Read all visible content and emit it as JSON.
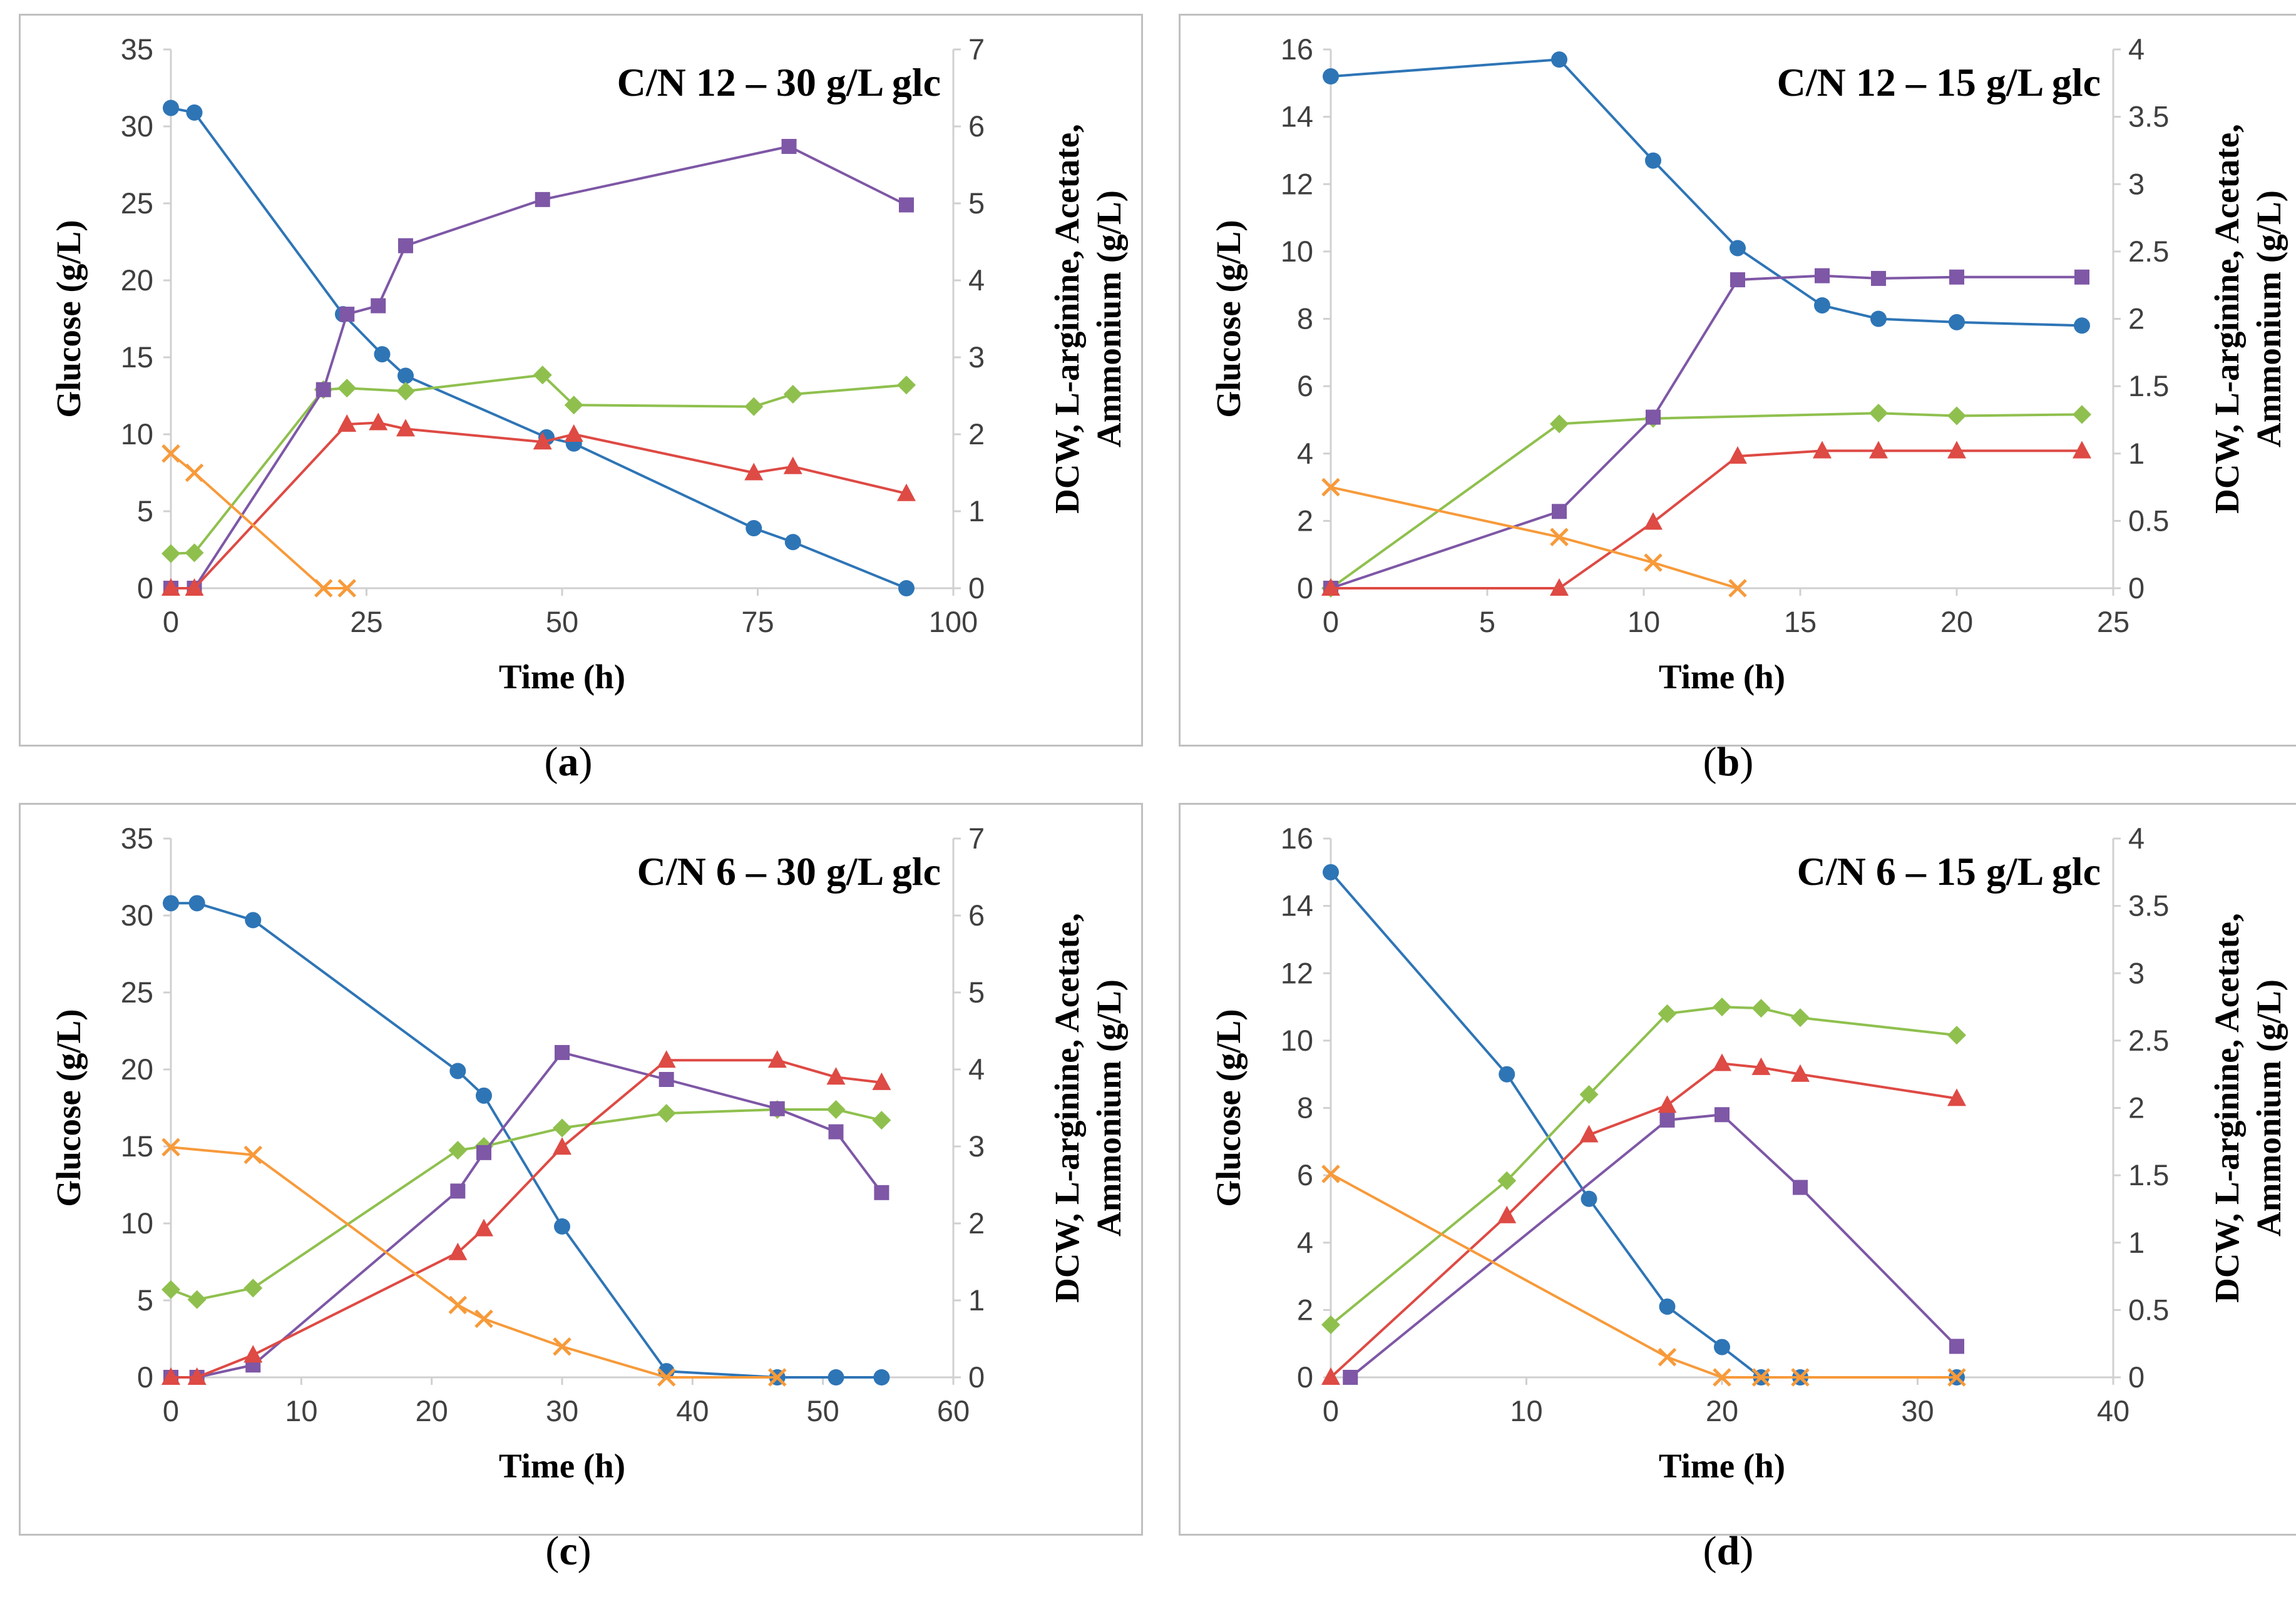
{
  "colors": {
    "glucose": "#2E75B6",
    "dcw": "#8FC04E",
    "arginine": "#7E57A6",
    "acetate": "#DE4A44",
    "ammonium": "#F79A3A"
  },
  "chart_data": [
    {
      "type": "line",
      "caption": "a",
      "title": "C/N 12 – 30 g/L glc",
      "xlabel": "Time (h)",
      "ylabel": "Glucose (g/L)",
      "y2label_line1": "DCW, L-arginine, Acetate,",
      "y2label_line2": "Ammonium (g/L)",
      "xlim": [
        0,
        100
      ],
      "xticks": [
        0,
        25,
        50,
        75,
        100
      ],
      "ylim": [
        0,
        35
      ],
      "yticks": [
        0,
        5,
        10,
        15,
        20,
        25,
        30,
        35
      ],
      "y2lim": [
        0,
        7
      ],
      "y2ticks": [
        0,
        1,
        2,
        3,
        4,
        5,
        6,
        7
      ],
      "series": [
        {
          "name": "Glucose",
          "axis": "left",
          "marker": "circle",
          "color_key": "glucose",
          "x": [
            0,
            3,
            22,
            27,
            30,
            48,
            51.5,
            74.5,
            79.5,
            94
          ],
          "y": [
            31.2,
            30.9,
            17.8,
            15.2,
            13.8,
            9.8,
            9.4,
            3.9,
            3.0,
            0
          ]
        },
        {
          "name": "DCW",
          "axis": "right",
          "marker": "diamond",
          "color_key": "dcw",
          "x": [
            0,
            3,
            19.5,
            22.5,
            30,
            47.5,
            51.5,
            74.5,
            79.5,
            94
          ],
          "y": [
            0.45,
            0.46,
            2.58,
            2.6,
            2.56,
            2.77,
            2.38,
            2.36,
            2.52,
            2.64
          ]
        },
        {
          "name": "L-arginine",
          "axis": "right",
          "marker": "square",
          "color_key": "arginine",
          "x": [
            0,
            3,
            19.5,
            22.5,
            26.5,
            30,
            47.5,
            79,
            94
          ],
          "y": [
            0,
            0,
            2.58,
            3.56,
            3.67,
            4.45,
            5.05,
            5.74,
            4.98
          ]
        },
        {
          "name": "Acetate",
          "axis": "right",
          "marker": "triangle",
          "color_key": "acetate",
          "x": [
            0,
            3,
            22.5,
            26.5,
            30,
            47.5,
            51.5,
            74.5,
            79.5,
            94
          ],
          "y": [
            0,
            0,
            2.13,
            2.15,
            2.07,
            1.9,
            2.0,
            1.5,
            1.58,
            1.23
          ]
        },
        {
          "name": "Ammonium",
          "axis": "right",
          "marker": "x",
          "color_key": "ammonium",
          "x": [
            0,
            3,
            19.5,
            22.5
          ],
          "y": [
            1.75,
            1.5,
            0,
            0
          ]
        }
      ]
    },
    {
      "type": "line",
      "caption": "b",
      "title": "C/N 12 – 15 g/L glc",
      "xlabel": "Time (h)",
      "ylabel": "Glucose (g/L)",
      "y2label_line1": "DCW, L-arginine, Acetate,",
      "y2label_line2": "Ammonium (g/L)",
      "xlim": [
        0,
        25
      ],
      "xticks": [
        0,
        5,
        10,
        15,
        20,
        25
      ],
      "ylim": [
        0,
        16
      ],
      "yticks": [
        0,
        2,
        4,
        6,
        8,
        10,
        12,
        14,
        16
      ],
      "y2lim": [
        0,
        4
      ],
      "y2ticks": [
        0,
        0.5,
        1,
        1.5,
        2,
        2.5,
        3,
        3.5,
        4
      ],
      "series": [
        {
          "name": "Glucose",
          "axis": "left",
          "marker": "circle",
          "color_key": "glucose",
          "x": [
            0,
            7.3,
            10.3,
            13,
            15.7,
            17.5,
            20,
            24
          ],
          "y": [
            15.2,
            15.7,
            12.7,
            10.1,
            8.4,
            8.0,
            7.9,
            7.8
          ]
        },
        {
          "name": "DCW",
          "axis": "right",
          "marker": "diamond",
          "color_key": "dcw",
          "x": [
            0,
            7.3,
            10.3,
            17.5,
            20,
            24
          ],
          "y": [
            0,
            1.22,
            1.26,
            1.3,
            1.28,
            1.29
          ]
        },
        {
          "name": "L-arginine",
          "axis": "right",
          "marker": "square",
          "color_key": "arginine",
          "x": [
            0,
            7.3,
            10.3,
            13,
            15.7,
            17.5,
            20,
            24
          ],
          "y": [
            0,
            0.57,
            1.27,
            2.29,
            2.32,
            2.3,
            2.31,
            2.31
          ]
        },
        {
          "name": "Acetate",
          "axis": "right",
          "marker": "triangle",
          "color_key": "acetate",
          "x": [
            0,
            7.3,
            10.3,
            13,
            15.7,
            17.5,
            20,
            24
          ],
          "y": [
            0,
            0,
            0.49,
            0.98,
            1.02,
            1.02,
            1.02,
            1.02
          ]
        },
        {
          "name": "Ammonium",
          "axis": "right",
          "marker": "x",
          "color_key": "ammonium",
          "x": [
            0,
            7.3,
            10.3,
            13
          ],
          "y": [
            0.75,
            0.38,
            0.19,
            0
          ]
        }
      ]
    },
    {
      "type": "line",
      "caption": "c",
      "title": "C/N 6 – 30 g/L glc",
      "xlabel": "Time (h)",
      "ylabel": "Glucose (g/L)",
      "y2label_line1": "DCW, L-arginine, Acetate,",
      "y2label_line2": "Ammonium (g/L)",
      "xlim": [
        0,
        60
      ],
      "xticks": [
        0,
        10,
        20,
        30,
        40,
        50,
        60
      ],
      "ylim": [
        0,
        35
      ],
      "yticks": [
        0,
        5,
        10,
        15,
        20,
        25,
        30,
        35
      ],
      "y2lim": [
        0,
        7
      ],
      "y2ticks": [
        0,
        1,
        2,
        3,
        4,
        5,
        6,
        7
      ],
      "series": [
        {
          "name": "Glucose",
          "axis": "left",
          "marker": "circle",
          "color_key": "glucose",
          "x": [
            0,
            2,
            6.3,
            22,
            24,
            30,
            38,
            46.5,
            51,
            54.5
          ],
          "y": [
            30.8,
            30.8,
            29.7,
            19.9,
            18.3,
            9.8,
            0.4,
            0,
            0,
            0
          ]
        },
        {
          "name": "DCW",
          "axis": "right",
          "marker": "diamond",
          "color_key": "dcw",
          "x": [
            0,
            2,
            6.3,
            22,
            24,
            30,
            38,
            46.5,
            51,
            54.5
          ],
          "y": [
            1.14,
            1.01,
            1.16,
            2.95,
            3.0,
            3.24,
            3.43,
            3.48,
            3.48,
            3.34
          ]
        },
        {
          "name": "L-arginine",
          "axis": "right",
          "marker": "square",
          "color_key": "arginine",
          "x": [
            0,
            2,
            6.3,
            22,
            24,
            30,
            38,
            46.5,
            51,
            54.5
          ],
          "y": [
            0,
            0,
            0.16,
            2.42,
            2.92,
            4.22,
            3.87,
            3.49,
            3.19,
            2.4
          ]
        },
        {
          "name": "Acetate",
          "axis": "right",
          "marker": "triangle",
          "color_key": "acetate",
          "x": [
            0,
            2,
            6.3,
            22,
            24,
            30,
            38,
            46.5,
            51,
            54.5
          ],
          "y": [
            0,
            0,
            0.29,
            1.62,
            1.93,
            2.99,
            4.12,
            4.12,
            3.9,
            3.83
          ]
        },
        {
          "name": "Ammonium",
          "axis": "right",
          "marker": "x",
          "color_key": "ammonium",
          "x": [
            0,
            6.3,
            22,
            24,
            30,
            38,
            46.5
          ],
          "y": [
            2.99,
            2.89,
            0.94,
            0.76,
            0.4,
            0,
            0
          ]
        }
      ]
    },
    {
      "type": "line",
      "caption": "d",
      "title": "C/N 6 – 15 g/L glc",
      "xlabel": "Time (h)",
      "ylabel": "Glucose (g/L)",
      "y2label_line1": "DCW, L-arginine, Acetate,",
      "y2label_line2": "Ammonium (g/L)",
      "xlim": [
        0,
        40
      ],
      "xticks": [
        0,
        10,
        20,
        30,
        40
      ],
      "ylim": [
        0,
        16
      ],
      "yticks": [
        0,
        2,
        4,
        6,
        8,
        10,
        12,
        14,
        16
      ],
      "y2lim": [
        0,
        4
      ],
      "y2ticks": [
        0,
        0.5,
        1,
        1.5,
        2,
        2.5,
        3,
        3.5,
        4
      ],
      "series": [
        {
          "name": "Glucose",
          "axis": "left",
          "marker": "circle",
          "color_key": "glucose",
          "x": [
            0,
            9,
            13.2,
            17.2,
            20,
            22,
            24,
            32
          ],
          "y": [
            15.0,
            9.0,
            5.3,
            2.1,
            0.9,
            0,
            0,
            0
          ]
        },
        {
          "name": "DCW",
          "axis": "right",
          "marker": "diamond",
          "color_key": "dcw",
          "x": [
            0,
            9,
            13.2,
            17.2,
            20,
            22,
            24,
            32
          ],
          "y": [
            0.39,
            1.46,
            2.1,
            2.7,
            2.75,
            2.74,
            2.67,
            2.54
          ]
        },
        {
          "name": "L-arginine",
          "axis": "right",
          "marker": "square",
          "color_key": "arginine",
          "x": [
            1,
            17.2,
            20,
            24,
            32
          ],
          "y": [
            0,
            1.91,
            1.95,
            1.41,
            0.23
          ]
        },
        {
          "name": "Acetate",
          "axis": "right",
          "marker": "triangle",
          "color_key": "acetate",
          "x": [
            0,
            9,
            13.2,
            17.2,
            20,
            22,
            24,
            32
          ],
          "y": [
            0,
            1.2,
            1.8,
            2.02,
            2.33,
            2.3,
            2.25,
            2.07
          ]
        },
        {
          "name": "Ammonium",
          "axis": "right",
          "marker": "x",
          "color_key": "ammonium",
          "x": [
            0,
            17.2,
            20,
            22,
            24,
            32
          ],
          "y": [
            1.51,
            0.15,
            0,
            0,
            0,
            0
          ]
        }
      ]
    }
  ]
}
